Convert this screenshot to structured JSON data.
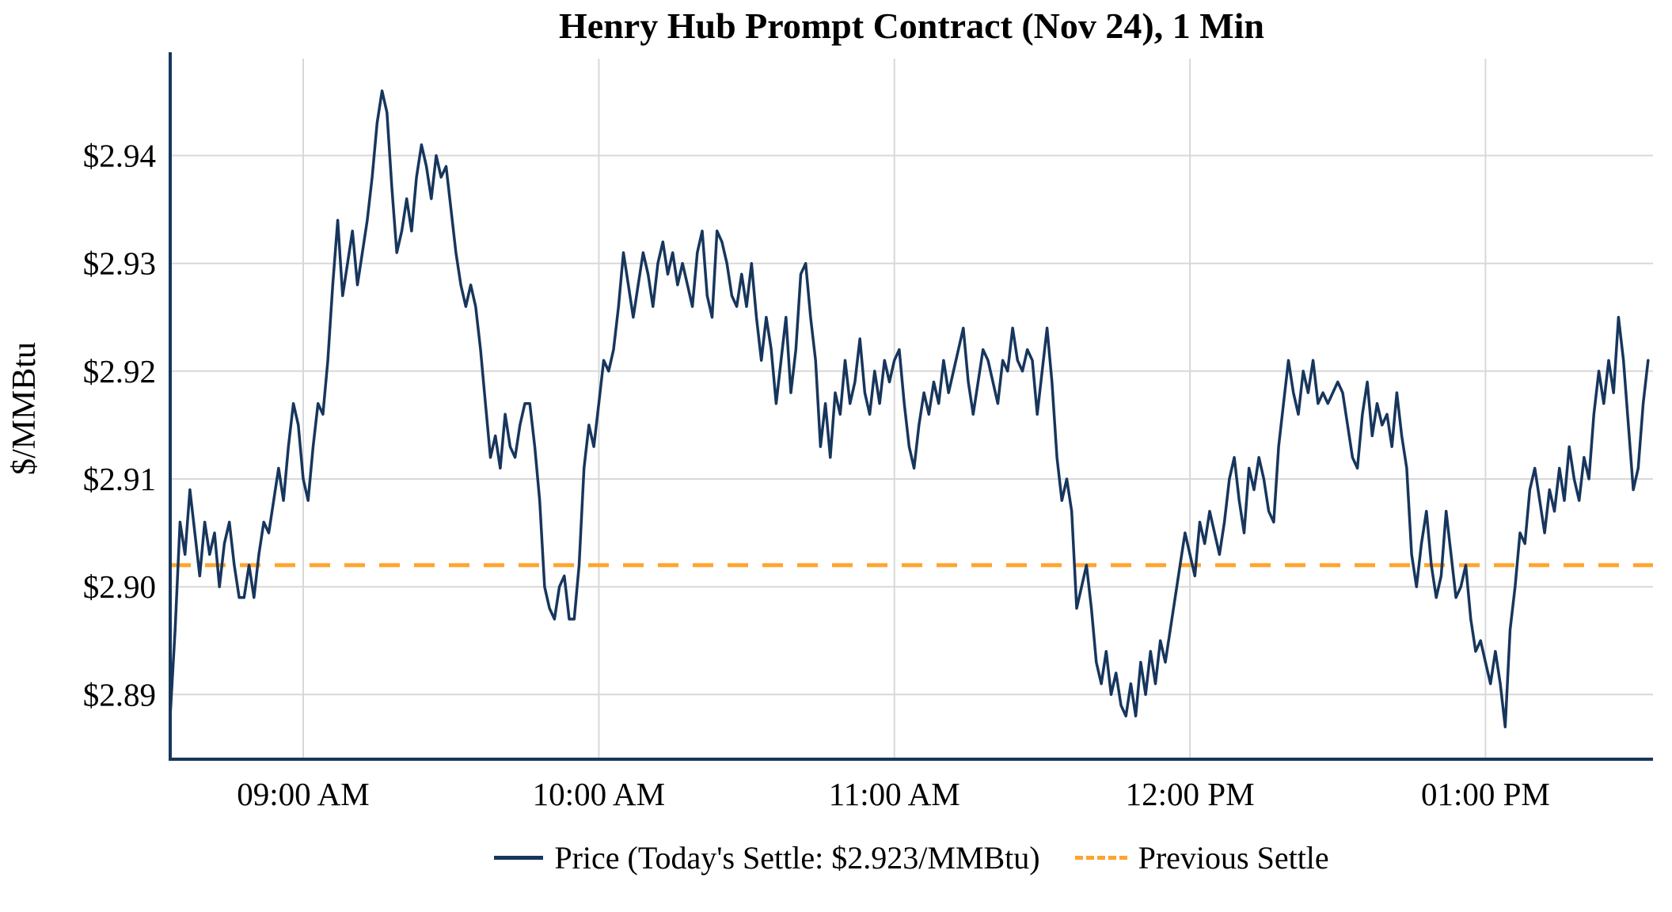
{
  "page": {
    "background": "#ffffff"
  },
  "chart_data": {
    "type": "line",
    "title": "Henry Hub Prompt Contract (Nov 24), 1 Min",
    "ylabel": "$/MMBtu",
    "xlabel": "",
    "grid": true,
    "x_unit": "minutes_since_midnight",
    "x_start": 513,
    "x_step_minutes": 1,
    "xlim": [
      513,
      814
    ],
    "ylim": [
      2.884,
      2.949
    ],
    "yticks": [
      {
        "value": 2.89,
        "label": "$2.89"
      },
      {
        "value": 2.9,
        "label": "$2.90"
      },
      {
        "value": 2.91,
        "label": "$2.91"
      },
      {
        "value": 2.92,
        "label": "$2.92"
      },
      {
        "value": 2.93,
        "label": "$2.93"
      },
      {
        "value": 2.94,
        "label": "$2.94"
      }
    ],
    "xticks": [
      {
        "value": 540,
        "label": "09:00 AM"
      },
      {
        "value": 600,
        "label": "10:00 AM"
      },
      {
        "value": 660,
        "label": "11:00 AM"
      },
      {
        "value": 720,
        "label": "12:00 PM"
      },
      {
        "value": 780,
        "label": "01:00 PM"
      }
    ],
    "colors": {
      "price_line": "#17365d",
      "previous_settle_line": "#ffa42e",
      "grid": "#d8d8d8",
      "axis": "#17365d",
      "text": "#000000"
    },
    "todays_settle": 2.923,
    "previous_settle": 2.902,
    "reference_lines": [
      {
        "name": "Previous Settle",
        "value": 2.902,
        "color": "#ffa42e",
        "style": "dashed"
      }
    ],
    "series": [
      {
        "name": "Price",
        "color": "#17365d",
        "style": "solid",
        "values": [
          2.888,
          2.896,
          2.906,
          2.903,
          2.909,
          2.905,
          2.901,
          2.906,
          2.903,
          2.905,
          2.9,
          2.904,
          2.906,
          2.902,
          2.899,
          2.899,
          2.902,
          2.899,
          2.903,
          2.906,
          2.905,
          2.908,
          2.911,
          2.908,
          2.913,
          2.917,
          2.915,
          2.91,
          2.908,
          2.913,
          2.917,
          2.916,
          2.921,
          2.928,
          2.934,
          2.927,
          2.93,
          2.933,
          2.928,
          2.931,
          2.934,
          2.938,
          2.943,
          2.946,
          2.944,
          2.937,
          2.931,
          2.933,
          2.936,
          2.933,
          2.938,
          2.941,
          2.939,
          2.936,
          2.94,
          2.938,
          2.939,
          2.935,
          2.931,
          2.928,
          2.926,
          2.928,
          2.926,
          2.922,
          2.917,
          2.912,
          2.914,
          2.911,
          2.916,
          2.913,
          2.912,
          2.915,
          2.917,
          2.917,
          2.913,
          2.908,
          2.9,
          2.898,
          2.897,
          2.9,
          2.901,
          2.897,
          2.897,
          2.902,
          2.911,
          2.915,
          2.913,
          2.917,
          2.921,
          2.92,
          2.922,
          2.926,
          2.931,
          2.928,
          2.925,
          2.928,
          2.931,
          2.929,
          2.926,
          2.93,
          2.932,
          2.929,
          2.931,
          2.928,
          2.93,
          2.928,
          2.926,
          2.931,
          2.933,
          2.927,
          2.925,
          2.933,
          2.932,
          2.93,
          2.927,
          2.926,
          2.929,
          2.926,
          2.93,
          2.925,
          2.921,
          2.925,
          2.922,
          2.917,
          2.921,
          2.925,
          2.918,
          2.922,
          2.929,
          2.93,
          2.925,
          2.921,
          2.913,
          2.917,
          2.912,
          2.918,
          2.916,
          2.921,
          2.917,
          2.919,
          2.923,
          2.918,
          2.916,
          2.92,
          2.917,
          2.921,
          2.919,
          2.921,
          2.922,
          2.917,
          2.913,
          2.911,
          2.915,
          2.918,
          2.916,
          2.919,
          2.917,
          2.921,
          2.918,
          2.92,
          2.922,
          2.924,
          2.919,
          2.916,
          2.919,
          2.922,
          2.921,
          2.919,
          2.917,
          2.921,
          2.92,
          2.924,
          2.921,
          2.92,
          2.922,
          2.921,
          2.916,
          2.92,
          2.924,
          2.919,
          2.912,
          2.908,
          2.91,
          2.907,
          2.898,
          2.9,
          2.902,
          2.898,
          2.893,
          2.891,
          2.894,
          2.89,
          2.892,
          2.889,
          2.888,
          2.891,
          2.888,
          2.893,
          2.89,
          2.894,
          2.891,
          2.895,
          2.893,
          2.896,
          2.899,
          2.902,
          2.905,
          2.903,
          2.901,
          2.906,
          2.904,
          2.907,
          2.905,
          2.903,
          2.906,
          2.91,
          2.912,
          2.908,
          2.905,
          2.911,
          2.909,
          2.912,
          2.91,
          2.907,
          2.906,
          2.913,
          2.917,
          2.921,
          2.918,
          2.916,
          2.92,
          2.918,
          2.921,
          2.917,
          2.918,
          2.917,
          2.918,
          2.919,
          2.918,
          2.915,
          2.912,
          2.911,
          2.916,
          2.919,
          2.914,
          2.917,
          2.915,
          2.916,
          2.913,
          2.918,
          2.914,
          2.911,
          2.903,
          2.9,
          2.904,
          2.907,
          2.902,
          2.899,
          2.901,
          2.907,
          2.903,
          2.899,
          2.9,
          2.902,
          2.897,
          2.894,
          2.895,
          2.893,
          2.891,
          2.894,
          2.891,
          2.887,
          2.896,
          2.9,
          2.905,
          2.904,
          2.909,
          2.911,
          2.908,
          2.905,
          2.909,
          2.907,
          2.911,
          2.908,
          2.913,
          2.91,
          2.908,
          2.912,
          2.91,
          2.916,
          2.92,
          2.917,
          2.921,
          2.918,
          2.925,
          2.921,
          2.915,
          2.909,
          2.911,
          2.917,
          2.921
        ]
      }
    ],
    "legend": {
      "position": "bottom",
      "items": [
        {
          "label": "Price (Today's Settle: $2.923/MMBtu)",
          "swatch": "solid-line",
          "color": "#17365d"
        },
        {
          "label": "Previous Settle",
          "swatch": "dashed-line",
          "color": "#ffa42e"
        }
      ]
    }
  }
}
